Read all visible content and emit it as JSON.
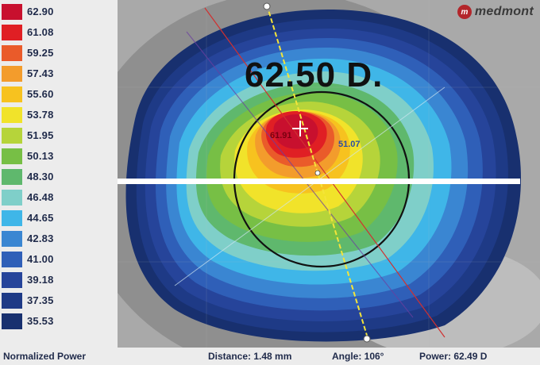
{
  "brand": {
    "logo_glyph": "m",
    "name": "medmont"
  },
  "legend": {
    "title": "Normalized Power",
    "entries": [
      {
        "value": "62.90",
        "color": "#c8102e"
      },
      {
        "value": "61.08",
        "color": "#e01f24"
      },
      {
        "value": "59.25",
        "color": "#ea5b2a"
      },
      {
        "value": "57.43",
        "color": "#f39c2c"
      },
      {
        "value": "55.60",
        "color": "#f7c21f"
      },
      {
        "value": "53.78",
        "color": "#f1e32a"
      },
      {
        "value": "51.95",
        "color": "#b6d43a"
      },
      {
        "value": "50.13",
        "color": "#77bf45"
      },
      {
        "value": "48.30",
        "color": "#5fb86d"
      },
      {
        "value": "46.48",
        "color": "#7fcfc9"
      },
      {
        "value": "44.65",
        "color": "#3fb6e8"
      },
      {
        "value": "42.83",
        "color": "#3a86d2"
      },
      {
        "value": "41.00",
        "color": "#2f5fb8"
      },
      {
        "value": "39.18",
        "color": "#26449a"
      },
      {
        "value": "37.35",
        "color": "#1e3a86"
      },
      {
        "value": "35.53",
        "color": "#18306f"
      }
    ]
  },
  "map": {
    "max_reading": "62.50 D.",
    "peak_label": "61.91",
    "point_label": "51.07",
    "crosshair_icon": "plus-icon"
  },
  "status": {
    "distance": "Distance: 1.48 mm",
    "angle": "Angle: 106°",
    "power": "Power: 62.49 D"
  }
}
